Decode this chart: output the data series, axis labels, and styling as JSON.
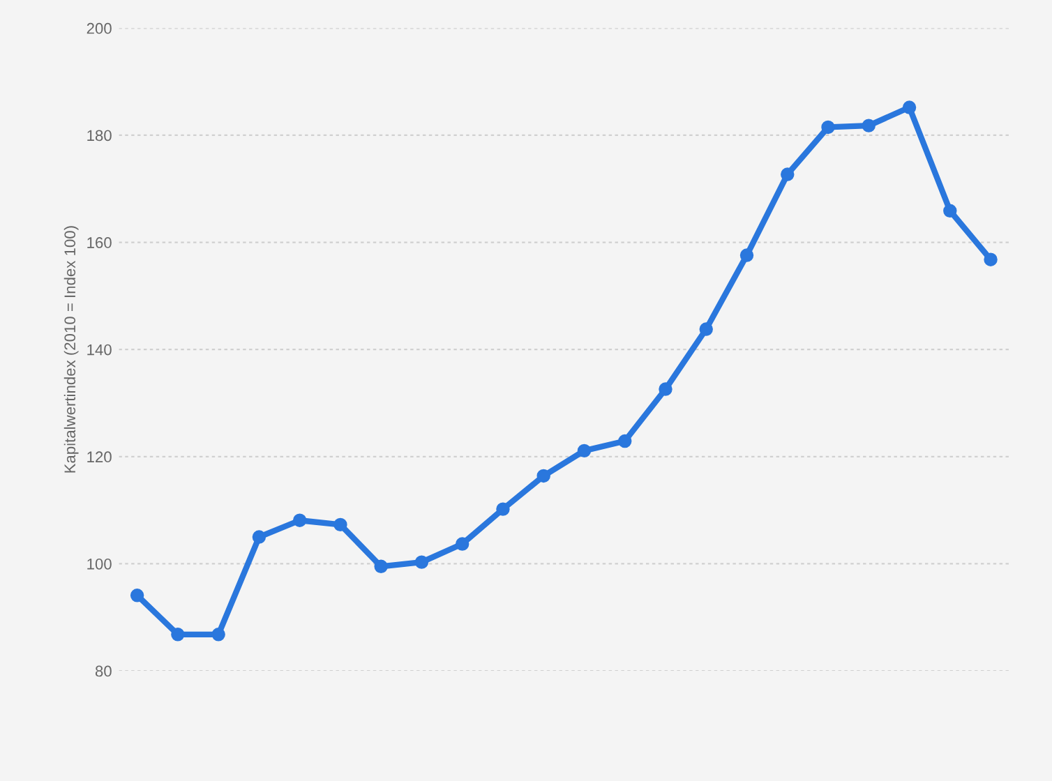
{
  "chart_data": {
    "type": "line",
    "ylabel": "Kapitalwertindex (2010 = Index 100)",
    "categories": [
      null,
      null,
      null,
      null,
      null,
      null,
      null,
      null,
      null,
      null,
      null,
      null,
      null,
      null,
      null,
      null,
      null,
      null,
      null,
      null,
      null,
      null
    ],
    "series": [
      {
        "color": "#2a77dd",
        "values": [
          94.1,
          86.8,
          86.8,
          105.0,
          108.1,
          107.3,
          99.5,
          100.3,
          103.7,
          110.2,
          116.4,
          121.1,
          122.9,
          132.6,
          143.8,
          157.6,
          172.7,
          181.5,
          181.8,
          185.2,
          165.9,
          156.8
        ]
      }
    ],
    "ylim": [
      80,
      200
    ],
    "yticks": [
      80,
      100,
      120,
      140,
      160,
      180,
      200
    ],
    "grid": "y",
    "marker": "circle",
    "line_style": "solid",
    "legend": false,
    "tick_labels": "y"
  }
}
